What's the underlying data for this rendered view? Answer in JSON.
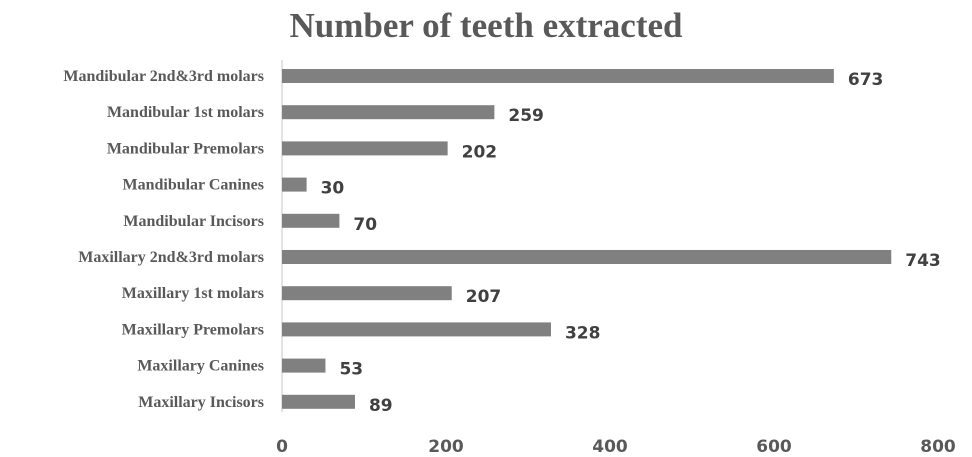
{
  "chart_data": {
    "type": "bar",
    "orientation": "horizontal",
    "title": "Number of teeth extracted",
    "categories": [
      "Mandibular 2nd&3rd molars",
      "Mandibular 1st molars",
      "Mandibular Premolars",
      "Mandibular Canines",
      "Mandibular Incisors",
      "Maxillary 2nd&3rd molars",
      "Maxillary 1st molars",
      "Maxillary Premolars",
      "Maxillary Canines",
      "Maxillary Incisors"
    ],
    "values": [
      673,
      259,
      202,
      30,
      70,
      743,
      207,
      328,
      53,
      89
    ],
    "xlim": [
      0,
      800
    ],
    "x_ticks": [
      "0",
      "200",
      "400",
      "600",
      "800"
    ],
    "xlabel": "",
    "ylabel": "",
    "grid": false,
    "legend": "none",
    "bar_color": "#808080",
    "axis_color": "#d9d9d9"
  }
}
